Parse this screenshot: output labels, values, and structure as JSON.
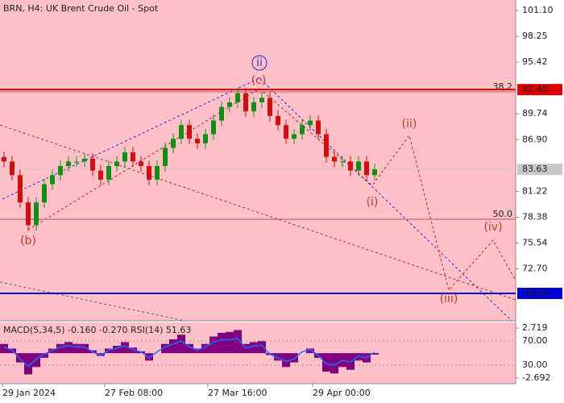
{
  "chart_data": {
    "type": "candlestick",
    "title": "BRN, H4:  UK Brent Crude Oil - Spot",
    "ylim": [
      66.99,
      102.25
    ],
    "yticks": [
      {
        "value": 101.1,
        "label": "101.10"
      },
      98.25,
      95.42,
      89.74,
      {
        "value": 86.9,
        "label": "86.90"
      },
      81.22,
      78.38,
      75.54,
      {
        "value": 72.7,
        "label": "72.70"
      }
    ],
    "levels": [
      {
        "value": 92.4,
        "label": "92.40",
        "color": "#dd0000"
      },
      {
        "value": 83.63,
        "label": "83.63",
        "color": "#c8c8c8"
      },
      {
        "value": 70,
        "label": "70.00",
        "color": "#0000dd"
      }
    ],
    "fib_levels": [
      {
        "value": 92.15,
        "label": "38.2"
      },
      {
        "value": 78.15,
        "label": "50.0"
      }
    ],
    "wave_labels": [
      "ii",
      "(c)",
      "(b)",
      "(i)",
      "(ii)",
      "(iii)",
      "(iv)"
    ],
    "time_labels": [
      "29 Jan 2024",
      "27 Feb 08:00",
      "27 Mar 16:00",
      "29 Apr 00:00"
    ],
    "open": [
      85,
      84.5,
      83,
      80,
      77.5,
      80,
      82,
      83,
      84,
      84.5,
      84.5,
      84.8,
      83.5,
      82.5,
      84,
      84.5,
      85.5,
      84.5,
      84,
      82.5,
      84,
      86,
      87,
      88.5,
      87,
      86.5,
      87.5,
      89,
      90.5,
      91,
      92,
      90,
      91,
      91.5,
      89.5,
      88.5,
      87,
      87.5,
      88.5,
      89,
      87.5,
      85,
      84.5,
      84.5,
      83.5,
      84.5,
      83
    ],
    "high": [
      85.6,
      85.1,
      83.6,
      80.6,
      80.6,
      82.6,
      83.6,
      84.6,
      85.1,
      85.1,
      85.4,
      85.4,
      84.1,
      84.6,
      85.1,
      86.1,
      86.1,
      85.1,
      84.6,
      84.6,
      86.6,
      87.6,
      89.1,
      89.1,
      87.6,
      88.1,
      89.6,
      91.1,
      91.6,
      92.6,
      92.6,
      91.6,
      92.1,
      92.1,
      90.1,
      89.1,
      88.1,
      89.1,
      89.6,
      89.6,
      88.1,
      85.6,
      85.1,
      85.1,
      85.1,
      85.1,
      84.23
    ],
    "low": [
      83.9,
      82.4,
      79.4,
      76.9,
      76.9,
      79.4,
      81.4,
      82.4,
      83.4,
      83.9,
      83.9,
      82.9,
      81.9,
      81.9,
      83.4,
      83.9,
      83.9,
      83.4,
      81.9,
      81.9,
      83.4,
      85.4,
      86.4,
      86.4,
      85.9,
      85.9,
      86.9,
      88.4,
      89.9,
      90.4,
      89.4,
      89.4,
      90.4,
      88.9,
      87.9,
      86.4,
      86.4,
      86.9,
      87.9,
      86.9,
      84.4,
      83.9,
      83.9,
      82.9,
      82.9,
      82.4,
      82.4
    ],
    "close": [
      84.5,
      83,
      80,
      77.5,
      80,
      82,
      83,
      84,
      84.5,
      84.5,
      84.8,
      83.5,
      82.5,
      84,
      84.5,
      85.5,
      84.5,
      84,
      82.5,
      84,
      86,
      87,
      88.5,
      87,
      86.5,
      87.5,
      89,
      90.5,
      91,
      92,
      90,
      91,
      91.5,
      89.5,
      88.5,
      87,
      87.5,
      88.5,
      89,
      87.5,
      85,
      84.5,
      84.5,
      83.5,
      84.5,
      83,
      83.63
    ],
    "indicator": {
      "title": "MACD(5,34,5) -0.160 -0.270 RSI(14) 51.63",
      "macd_ylim": [
        -3.3,
        3.33
      ],
      "macd_ticks": [
        2.719,
        -2.692
      ],
      "rsi_ylim": [
        -0.7,
        100.7
      ],
      "rsi_ticks": [
        {
          "value": 70,
          "label": "70.00"
        },
        {
          "value": 30,
          "label": "30.00"
        }
      ],
      "macd": [
        1,
        0.5,
        -1,
        -2.3,
        -1.5,
        -0.5,
        0.5,
        1,
        1.2,
        1,
        1,
        0.3,
        -0.3,
        0.5,
        0.8,
        1.2,
        0.6,
        0.2,
        -0.8,
        0,
        1,
        1.5,
        2,
        1,
        0.5,
        1,
        1.8,
        2.2,
        2.3,
        2.5,
        1,
        1.2,
        1.3,
        -0.2,
        -0.8,
        -1.5,
        -1,
        0,
        0.5,
        -0.5,
        -2,
        -2.2,
        -1.5,
        -1.8,
        -0.8,
        -1,
        -0.16
      ],
      "rsi": [
        60,
        55,
        40,
        28,
        40,
        48,
        55,
        60,
        62,
        60,
        60,
        52,
        46,
        55,
        58,
        62,
        56,
        52,
        42,
        52,
        60,
        65,
        70,
        60,
        55,
        60,
        68,
        72,
        72,
        74,
        58,
        62,
        63,
        48,
        42,
        36,
        40,
        52,
        56,
        46,
        32,
        30,
        38,
        35,
        45,
        42,
        51.63
      ]
    }
  }
}
